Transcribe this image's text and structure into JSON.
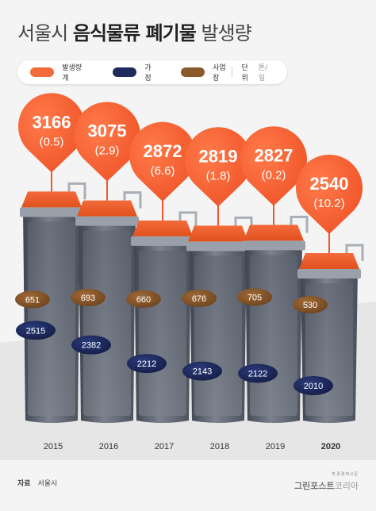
{
  "title": {
    "light": "서울시",
    "bold": "음식물류 폐기물",
    "suffix": "발생량"
  },
  "legend": {
    "items": [
      {
        "label": "발생량 계",
        "color": "#f26b3a"
      },
      {
        "label": "가정",
        "color": "#1d2a5b"
      },
      {
        "label": "사업장",
        "color": "#8a5a2b"
      }
    ],
    "unit_label": "단위",
    "unit_value": "톤/일"
  },
  "chart_data": {
    "type": "bar",
    "categories": [
      "2015",
      "2016",
      "2017",
      "2018",
      "2019",
      "2020"
    ],
    "series": [
      {
        "name": "발생량 계",
        "values": [
          3166,
          3075,
          2872,
          2819,
          2827,
          2540
        ],
        "change_labels": [
          "(0.5)",
          "(2.9)",
          "(6.6)",
          "(1.8)",
          "(0.2)",
          "(10.2)"
        ]
      },
      {
        "name": "가정",
        "values": [
          2515,
          2382,
          2212,
          2143,
          2122,
          2010
        ]
      },
      {
        "name": "사업장",
        "values": [
          651,
          693,
          660,
          676,
          705,
          530
        ]
      }
    ],
    "highlight_category": "2020"
  },
  "source": {
    "label": "자료",
    "value": "서울시"
  },
  "brand": {
    "small": "환경경제신문",
    "name": "그린포스트",
    "sub": "코리아"
  }
}
